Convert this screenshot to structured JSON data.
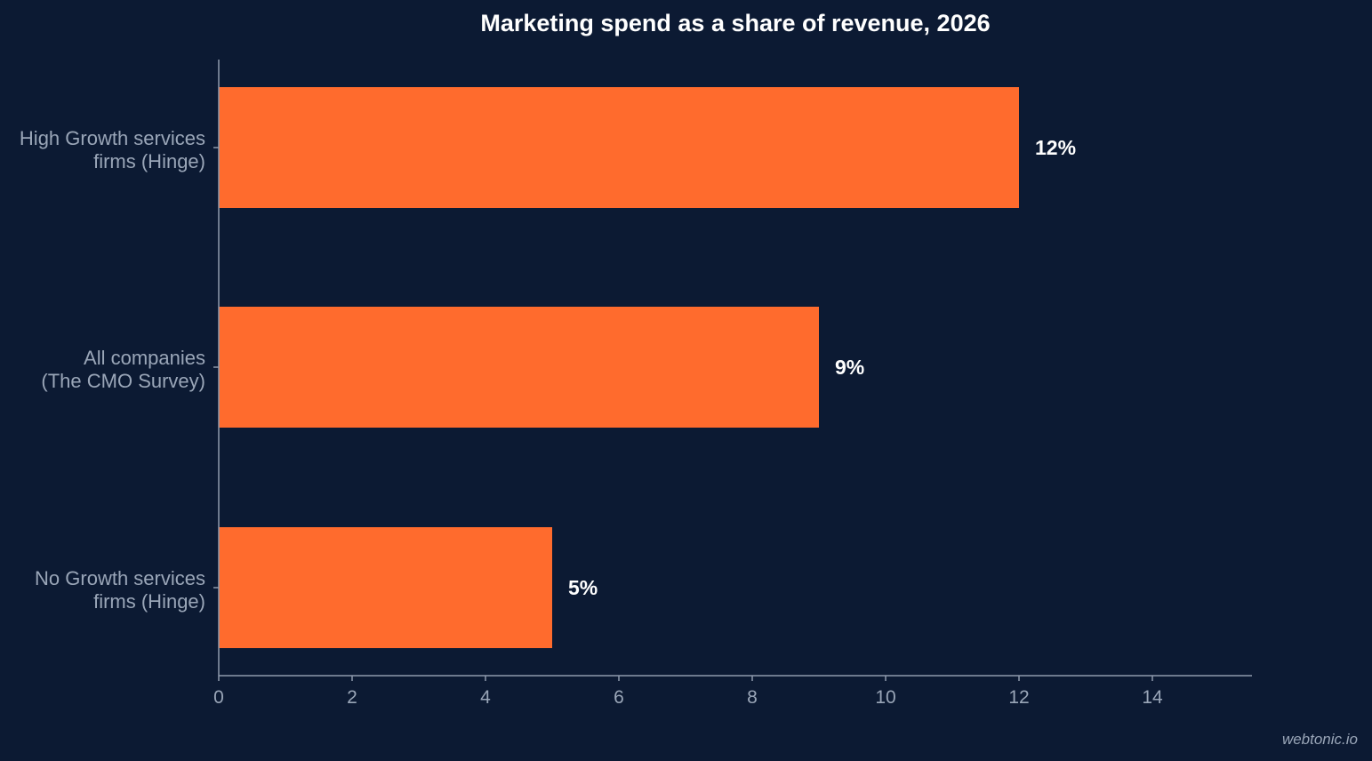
{
  "chart_data": {
    "type": "bar",
    "orientation": "horizontal",
    "title": "Marketing spend as a share of revenue, 2026",
    "categories": [
      [
        "High Growth services",
        "firms (Hinge)"
      ],
      [
        "All companies",
        "(The CMO Survey)"
      ],
      [
        "No Growth services",
        "firms (Hinge)"
      ]
    ],
    "values": [
      12,
      9,
      5
    ],
    "data_labels": [
      "12%",
      "9%",
      "5%"
    ],
    "xlim": [
      0,
      15.5
    ],
    "xticks": [
      0,
      2,
      4,
      6,
      8,
      10,
      12,
      14
    ],
    "xlabel": "",
    "ylabel": "",
    "bar_color": "#ff6b2d",
    "grid": false,
    "legend": "none"
  },
  "credit": "webtonic.io",
  "colors": {
    "background": "#0c1a33",
    "text": "#ffffff",
    "muted": "#9aa6b8"
  }
}
